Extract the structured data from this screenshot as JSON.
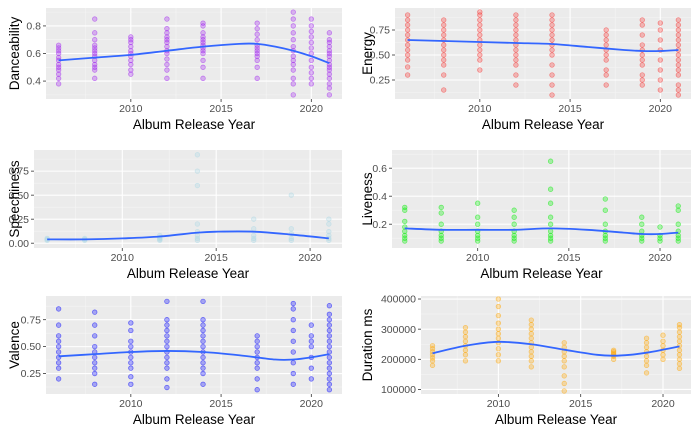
{
  "chart_data": [
    {
      "type": "scatter",
      "ylabel": "Danceability",
      "xlabel": "Album Release Year",
      "xlim": [
        2005.3,
        2021.7
      ],
      "ylim": [
        0.27,
        0.93
      ],
      "xticks": [
        2010,
        2015,
        2020
      ],
      "yticks": [
        0.4,
        0.6,
        0.8
      ],
      "yticklabels": [
        "0.4",
        "0.6",
        "0.8"
      ],
      "color": "#A020F0",
      "smooth_color": "#3366FF",
      "grid": true,
      "groups": [
        {
          "year": 2006,
          "values": [
            0.38,
            0.42,
            0.45,
            0.48,
            0.5,
            0.52,
            0.55,
            0.57,
            0.6,
            0.62,
            0.64,
            0.66
          ]
        },
        {
          "year": 2008,
          "values": [
            0.42,
            0.48,
            0.5,
            0.52,
            0.55,
            0.58,
            0.6,
            0.62,
            0.64,
            0.66,
            0.7,
            0.75,
            0.85
          ]
        },
        {
          "year": 2010,
          "values": [
            0.45,
            0.48,
            0.52,
            0.55,
            0.58,
            0.6,
            0.62,
            0.65,
            0.68,
            0.7,
            0.72
          ]
        },
        {
          "year": 2012,
          "values": [
            0.42,
            0.48,
            0.52,
            0.56,
            0.6,
            0.62,
            0.65,
            0.68,
            0.7,
            0.72,
            0.75,
            0.78,
            0.85
          ]
        },
        {
          "year": 2014,
          "values": [
            0.42,
            0.5,
            0.55,
            0.6,
            0.62,
            0.64,
            0.66,
            0.68,
            0.7,
            0.72,
            0.75,
            0.8,
            0.82
          ]
        },
        {
          "year": 2017,
          "values": [
            0.42,
            0.5,
            0.55,
            0.58,
            0.6,
            0.62,
            0.64,
            0.66,
            0.7,
            0.74,
            0.78,
            0.82
          ]
        },
        {
          "year": 2019,
          "values": [
            0.3,
            0.38,
            0.42,
            0.48,
            0.52,
            0.55,
            0.58,
            0.62,
            0.65,
            0.7,
            0.75,
            0.8,
            0.85,
            0.9
          ]
        },
        {
          "year": 2020,
          "values": [
            0.38,
            0.42,
            0.46,
            0.5,
            0.55,
            0.6,
            0.64,
            0.68,
            0.72,
            0.76,
            0.8,
            0.85
          ]
        },
        {
          "year": 2021,
          "values": [
            0.3,
            0.35,
            0.38,
            0.42,
            0.45,
            0.48,
            0.5,
            0.52,
            0.55,
            0.58,
            0.6,
            0.62,
            0.65,
            0.68,
            0.7,
            0.75
          ]
        }
      ],
      "smooth": [
        [
          2006,
          0.55
        ],
        [
          2008,
          0.57
        ],
        [
          2010,
          0.59
        ],
        [
          2012,
          0.62
        ],
        [
          2014,
          0.65
        ],
        [
          2016,
          0.67
        ],
        [
          2017,
          0.67
        ],
        [
          2018,
          0.65
        ],
        [
          2019,
          0.62
        ],
        [
          2020,
          0.58
        ],
        [
          2021,
          0.53
        ]
      ]
    },
    {
      "type": "scatter",
      "ylabel": "Energy",
      "xlabel": "Album Release Year",
      "xlim": [
        2005.3,
        2021.7
      ],
      "ylim": [
        0.06,
        0.97
      ],
      "xticks": [
        2010,
        2015,
        2020
      ],
      "yticks": [
        0.25,
        0.5,
        0.75
      ],
      "yticklabels": [
        "0.25",
        "0.50",
        "0.75"
      ],
      "color": "#F8312F",
      "smooth_color": "#3366FF",
      "grid": true,
      "groups": [
        {
          "year": 2006,
          "values": [
            0.3,
            0.38,
            0.45,
            0.5,
            0.55,
            0.6,
            0.65,
            0.7,
            0.75,
            0.8,
            0.85,
            0.9
          ]
        },
        {
          "year": 2008,
          "values": [
            0.15,
            0.3,
            0.4,
            0.45,
            0.5,
            0.55,
            0.6,
            0.65,
            0.7,
            0.75,
            0.8,
            0.85
          ]
        },
        {
          "year": 2010,
          "values": [
            0.35,
            0.45,
            0.5,
            0.55,
            0.6,
            0.65,
            0.7,
            0.75,
            0.8,
            0.85,
            0.9,
            0.93
          ]
        },
        {
          "year": 2012,
          "values": [
            0.2,
            0.3,
            0.4,
            0.45,
            0.5,
            0.55,
            0.6,
            0.65,
            0.7,
            0.75,
            0.8,
            0.85,
            0.9
          ]
        },
        {
          "year": 2014,
          "values": [
            0.1,
            0.2,
            0.3,
            0.4,
            0.5,
            0.55,
            0.6,
            0.65,
            0.7,
            0.75,
            0.8,
            0.85,
            0.9
          ]
        },
        {
          "year": 2017,
          "values": [
            0.2,
            0.3,
            0.35,
            0.45,
            0.5,
            0.55,
            0.6,
            0.65,
            0.7,
            0.75
          ]
        },
        {
          "year": 2019,
          "values": [
            0.2,
            0.25,
            0.3,
            0.4,
            0.45,
            0.5,
            0.55,
            0.6,
            0.7,
            0.8,
            0.85
          ]
        },
        {
          "year": 2020,
          "values": [
            0.15,
            0.25,
            0.35,
            0.45,
            0.55,
            0.65,
            0.75,
            0.82
          ]
        },
        {
          "year": 2021,
          "values": [
            0.1,
            0.15,
            0.2,
            0.3,
            0.35,
            0.4,
            0.45,
            0.5,
            0.55,
            0.6,
            0.65,
            0.7,
            0.75,
            0.8,
            0.85
          ]
        }
      ],
      "smooth": [
        [
          2006,
          0.65
        ],
        [
          2008,
          0.64
        ],
        [
          2010,
          0.63
        ],
        [
          2012,
          0.62
        ],
        [
          2014,
          0.61
        ],
        [
          2016,
          0.58
        ],
        [
          2018,
          0.55
        ],
        [
          2019,
          0.54
        ],
        [
          2020,
          0.54
        ],
        [
          2021,
          0.55
        ]
      ]
    },
    {
      "type": "scatter",
      "ylabel": "Speechiness",
      "xlabel": "Album Release Year",
      "xlim": [
        2005.3,
        2021.7
      ],
      "ylim": [
        -0.05,
        0.97
      ],
      "xticks": [
        2010,
        2015,
        2020
      ],
      "yticks": [
        0.0,
        0.25,
        0.5,
        0.75
      ],
      "yticklabels": [
        "0.00",
        "0.25",
        "0.50",
        "0.75"
      ],
      "color": "#ADD8E6",
      "smooth_color": "#3366FF",
      "grid": true,
      "groups": [
        {
          "year": 2006,
          "values": [
            0.03,
            0.04,
            0.05
          ]
        },
        {
          "year": 2008,
          "values": [
            0.03,
            0.04,
            0.05
          ]
        },
        {
          "year": 2012,
          "values": [
            0.03,
            0.04,
            0.05,
            0.06,
            0.08
          ]
        },
        {
          "year": 2014,
          "values": [
            0.03,
            0.05,
            0.08,
            0.12,
            0.2,
            0.6,
            0.75,
            0.92
          ]
        },
        {
          "year": 2017,
          "values": [
            0.03,
            0.05,
            0.08,
            0.15,
            0.25
          ]
        },
        {
          "year": 2019,
          "values": [
            0.03,
            0.05,
            0.1,
            0.15,
            0.5
          ]
        },
        {
          "year": 2021,
          "values": [
            0.03,
            0.05,
            0.08,
            0.12,
            0.2,
            0.25
          ]
        }
      ],
      "smooth": [
        [
          2006,
          0.04
        ],
        [
          2008,
          0.04
        ],
        [
          2010,
          0.05
        ],
        [
          2012,
          0.07
        ],
        [
          2014,
          0.11
        ],
        [
          2015,
          0.12
        ],
        [
          2017,
          0.12
        ],
        [
          2019,
          0.09
        ],
        [
          2021,
          0.05
        ]
      ]
    },
    {
      "type": "scatter",
      "ylabel": "Liveness",
      "xlabel": "Album Release Year",
      "xlim": [
        2005.3,
        2021.7
      ],
      "ylim": [
        0.03,
        0.73
      ],
      "xticks": [
        2010,
        2015,
        2020
      ],
      "yticks": [
        0.2,
        0.4,
        0.6
      ],
      "yticklabels": [
        "0.2",
        "0.4",
        "0.6"
      ],
      "color": "#00EE00",
      "smooth_color": "#3366FF",
      "grid": true,
      "groups": [
        {
          "year": 2006,
          "values": [
            0.08,
            0.1,
            0.12,
            0.15,
            0.18,
            0.22,
            0.3,
            0.32
          ]
        },
        {
          "year": 2008,
          "values": [
            0.08,
            0.1,
            0.12,
            0.15,
            0.2,
            0.28,
            0.32
          ]
        },
        {
          "year": 2010,
          "values": [
            0.08,
            0.1,
            0.12,
            0.15,
            0.2,
            0.25,
            0.35
          ]
        },
        {
          "year": 2012,
          "values": [
            0.08,
            0.1,
            0.12,
            0.15,
            0.2,
            0.25,
            0.3
          ]
        },
        {
          "year": 2014,
          "values": [
            0.08,
            0.1,
            0.12,
            0.15,
            0.2,
            0.25,
            0.35,
            0.45,
            0.65
          ]
        },
        {
          "year": 2017,
          "values": [
            0.08,
            0.1,
            0.12,
            0.15,
            0.2,
            0.3,
            0.38
          ]
        },
        {
          "year": 2019,
          "values": [
            0.08,
            0.1,
            0.12,
            0.15,
            0.2,
            0.25
          ]
        },
        {
          "year": 2020,
          "values": [
            0.08,
            0.1,
            0.12,
            0.18
          ]
        },
        {
          "year": 2021,
          "values": [
            0.08,
            0.1,
            0.12,
            0.15,
            0.2,
            0.3,
            0.33
          ]
        }
      ],
      "smooth": [
        [
          2006,
          0.17
        ],
        [
          2008,
          0.16
        ],
        [
          2010,
          0.16
        ],
        [
          2012,
          0.16
        ],
        [
          2014,
          0.17
        ],
        [
          2016,
          0.16
        ],
        [
          2018,
          0.14
        ],
        [
          2019,
          0.13
        ],
        [
          2020,
          0.13
        ],
        [
          2021,
          0.14
        ]
      ]
    },
    {
      "type": "scatter",
      "ylabel": "Valence",
      "xlabel": "Album Release Year",
      "xlim": [
        2005.3,
        2021.7
      ],
      "ylim": [
        0.06,
        0.97
      ],
      "xticks": [
        2010,
        2015,
        2020
      ],
      "yticks": [
        0.25,
        0.5,
        0.75
      ],
      "yticklabels": [
        "0.25",
        "0.50",
        "0.75"
      ],
      "color": "#0000FF",
      "smooth_color": "#3366FF",
      "grid": true,
      "groups": [
        {
          "year": 2006,
          "values": [
            0.2,
            0.3,
            0.35,
            0.4,
            0.45,
            0.5,
            0.55,
            0.6,
            0.7,
            0.85
          ]
        },
        {
          "year": 2008,
          "values": [
            0.15,
            0.25,
            0.3,
            0.35,
            0.4,
            0.45,
            0.5,
            0.6,
            0.7,
            0.82
          ]
        },
        {
          "year": 2010,
          "values": [
            0.15,
            0.22,
            0.3,
            0.35,
            0.4,
            0.45,
            0.5,
            0.55,
            0.65,
            0.72
          ]
        },
        {
          "year": 2012,
          "values": [
            0.12,
            0.2,
            0.3,
            0.35,
            0.4,
            0.45,
            0.5,
            0.55,
            0.6,
            0.65,
            0.7,
            0.75,
            0.92
          ]
        },
        {
          "year": 2014,
          "values": [
            0.15,
            0.25,
            0.3,
            0.35,
            0.4,
            0.45,
            0.5,
            0.55,
            0.6,
            0.65,
            0.7,
            0.75,
            0.92
          ]
        },
        {
          "year": 2017,
          "values": [
            0.1,
            0.2,
            0.3,
            0.35,
            0.4,
            0.45,
            0.5,
            0.55,
            0.6
          ]
        },
        {
          "year": 2019,
          "values": [
            0.15,
            0.25,
            0.35,
            0.45,
            0.55,
            0.65,
            0.75,
            0.85,
            0.9
          ]
        },
        {
          "year": 2020,
          "values": [
            0.2,
            0.3,
            0.4,
            0.5,
            0.55,
            0.6,
            0.7
          ]
        },
        {
          "year": 2021,
          "values": [
            0.1,
            0.15,
            0.2,
            0.25,
            0.3,
            0.35,
            0.4,
            0.45,
            0.5,
            0.55,
            0.6,
            0.65,
            0.7,
            0.75,
            0.8,
            0.88
          ]
        }
      ],
      "smooth": [
        [
          2006,
          0.41
        ],
        [
          2008,
          0.43
        ],
        [
          2010,
          0.45
        ],
        [
          2012,
          0.46
        ],
        [
          2014,
          0.45
        ],
        [
          2016,
          0.42
        ],
        [
          2018,
          0.38
        ],
        [
          2019,
          0.38
        ],
        [
          2020,
          0.4
        ],
        [
          2021,
          0.43
        ]
      ]
    },
    {
      "type": "scatter",
      "ylabel": "Duration ms",
      "xlabel": "Album Release Year",
      "xlim": [
        2005.3,
        2021.7
      ],
      "ylim": [
        85000,
        410000
      ],
      "xticks": [
        2010,
        2015,
        2020
      ],
      "yticks": [
        100000,
        200000,
        300000,
        400000
      ],
      "yticklabels": [
        "100000",
        "200000",
        "300000",
        "400000"
      ],
      "color": "#FFA500",
      "smooth_color": "#3366FF",
      "grid": true,
      "groups": [
        {
          "year": 2006,
          "values": [
            180000,
            195000,
            205000,
            215000,
            225000,
            235000,
            245000
          ]
        },
        {
          "year": 2008,
          "values": [
            195000,
            215000,
            230000,
            245000,
            260000,
            275000,
            290000,
            305000
          ]
        },
        {
          "year": 2010,
          "values": [
            195000,
            215000,
            235000,
            255000,
            270000,
            285000,
            300000,
            320000,
            345000,
            375000,
            400000
          ]
        },
        {
          "year": 2012,
          "values": [
            175000,
            195000,
            210000,
            225000,
            240000,
            255000,
            270000,
            285000,
            300000,
            315000,
            330000
          ]
        },
        {
          "year": 2014,
          "values": [
            95000,
            120000,
            145000,
            175000,
            195000,
            210000,
            225000,
            240000,
            255000
          ]
        },
        {
          "year": 2017,
          "values": [
            200000,
            210000,
            215000,
            220000,
            225000,
            230000
          ]
        },
        {
          "year": 2019,
          "values": [
            155000,
            180000,
            195000,
            210000,
            225000,
            240000,
            255000,
            270000
          ]
        },
        {
          "year": 2020,
          "values": [
            200000,
            215000,
            230000,
            245000,
            260000,
            280000
          ]
        },
        {
          "year": 2021,
          "values": [
            170000,
            185000,
            200000,
            215000,
            230000,
            245000,
            260000,
            275000,
            290000,
            305000,
            315000
          ]
        }
      ],
      "smooth": [
        [
          2006,
          220000
        ],
        [
          2008,
          245000
        ],
        [
          2010,
          258000
        ],
        [
          2012,
          250000
        ],
        [
          2014,
          232000
        ],
        [
          2016,
          215000
        ],
        [
          2017,
          212000
        ],
        [
          2018,
          215000
        ],
        [
          2019,
          222000
        ],
        [
          2020,
          232000
        ],
        [
          2021,
          243000
        ]
      ]
    }
  ]
}
